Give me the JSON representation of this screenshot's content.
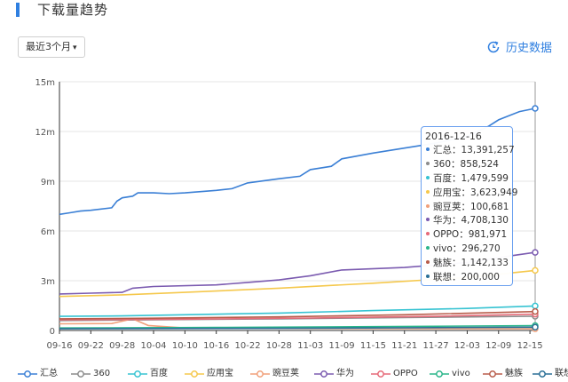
{
  "header": {
    "title": "下载量趋势"
  },
  "controls": {
    "range_label": "最近3个月",
    "history_label": "历史数据"
  },
  "icons": {
    "range_caret": "caret-down-icon",
    "history": "refresh-clock-icon"
  },
  "tooltip": {
    "date": "2016-12-16",
    "rows": [
      {
        "name": "汇总",
        "value": "13,391,257"
      },
      {
        "name": "360",
        "value": "858,524"
      },
      {
        "name": "百度",
        "value": "1,479,599"
      },
      {
        "name": "应用宝",
        "value": "3,623,949"
      },
      {
        "name": "豌豆荚",
        "value": "100,681"
      },
      {
        "name": "华为",
        "value": "4,708,130"
      },
      {
        "name": "OPPO",
        "value": "981,971"
      },
      {
        "name": "vivo",
        "value": "296,270"
      },
      {
        "name": "魅族",
        "value": "1,142,133"
      },
      {
        "name": "联想",
        "value": "200,000"
      }
    ]
  },
  "chart_data": {
    "type": "line",
    "ylim": [
      0,
      15000000
    ],
    "yticks": [
      0,
      3000000,
      6000000,
      9000000,
      12000000,
      15000000
    ],
    "ytick_labels": [
      "0",
      "3m",
      "6m",
      "9m",
      "12m",
      "15m"
    ],
    "xticks": [
      "09-16",
      "09-22",
      "09-28",
      "10-04",
      "10-10",
      "10-16",
      "10-22",
      "10-28",
      "11-03",
      "11-09",
      "11-15",
      "11-21",
      "11-27",
      "12-03",
      "12-09",
      "12-15"
    ],
    "x_start": "2016-09-16",
    "x_end": "2016-12-16",
    "series": [
      {
        "name": "汇总",
        "color": "#3a7fd5",
        "points": [
          [
            "2016-09-16",
            7000000
          ],
          [
            "2016-09-18",
            7100000
          ],
          [
            "2016-09-20",
            7200000
          ],
          [
            "2016-09-22",
            7250000
          ],
          [
            "2016-09-26",
            7400000
          ],
          [
            "2016-09-27",
            7800000
          ],
          [
            "2016-09-28",
            8000000
          ],
          [
            "2016-09-30",
            8100000
          ],
          [
            "2016-10-01",
            8300000
          ],
          [
            "2016-10-04",
            8300000
          ],
          [
            "2016-10-07",
            8250000
          ],
          [
            "2016-10-10",
            8300000
          ],
          [
            "2016-10-16",
            8450000
          ],
          [
            "2016-10-19",
            8550000
          ],
          [
            "2016-10-22",
            8900000
          ],
          [
            "2016-10-28",
            9150000
          ],
          [
            "2016-11-01",
            9300000
          ],
          [
            "2016-11-03",
            9700000
          ],
          [
            "2016-11-07",
            9900000
          ],
          [
            "2016-11-09",
            10350000
          ],
          [
            "2016-11-15",
            10700000
          ],
          [
            "2016-11-21",
            11000000
          ],
          [
            "2016-11-27",
            11300000
          ],
          [
            "2016-12-03",
            11700000
          ],
          [
            "2016-12-07",
            12300000
          ],
          [
            "2016-12-09",
            12700000
          ],
          [
            "2016-12-13",
            13200000
          ],
          [
            "2016-12-16",
            13391257
          ]
        ]
      },
      {
        "name": "360",
        "color": "#8c8c8c",
        "points": [
          [
            "2016-09-16",
            600000
          ],
          [
            "2016-10-04",
            650000
          ],
          [
            "2016-10-28",
            700000
          ],
          [
            "2016-11-21",
            780000
          ],
          [
            "2016-12-16",
            858524
          ]
        ]
      },
      {
        "name": "百度",
        "color": "#36c3d2",
        "points": [
          [
            "2016-09-16",
            850000
          ],
          [
            "2016-09-28",
            880000
          ],
          [
            "2016-10-10",
            950000
          ],
          [
            "2016-10-28",
            1050000
          ],
          [
            "2016-11-15",
            1200000
          ],
          [
            "2016-12-03",
            1330000
          ],
          [
            "2016-12-16",
            1479599
          ]
        ]
      },
      {
        "name": "应用宝",
        "color": "#f5c84c",
        "points": [
          [
            "2016-09-16",
            2050000
          ],
          [
            "2016-09-28",
            2150000
          ],
          [
            "2016-10-10",
            2300000
          ],
          [
            "2016-10-28",
            2550000
          ],
          [
            "2016-11-15",
            2850000
          ],
          [
            "2016-12-03",
            3200000
          ],
          [
            "2016-12-16",
            3623949
          ]
        ]
      },
      {
        "name": "豌豆荚",
        "color": "#f0a07a",
        "points": [
          [
            "2016-09-16",
            400000
          ],
          [
            "2016-09-26",
            420000
          ],
          [
            "2016-09-30",
            700000
          ],
          [
            "2016-10-03",
            300000
          ],
          [
            "2016-10-10",
            150000
          ],
          [
            "2016-11-03",
            120000
          ],
          [
            "2016-12-16",
            100681
          ]
        ]
      },
      {
        "name": "华为",
        "color": "#7b5bb0",
        "points": [
          [
            "2016-09-16",
            2200000
          ],
          [
            "2016-09-22",
            2250000
          ],
          [
            "2016-09-28",
            2300000
          ],
          [
            "2016-09-30",
            2550000
          ],
          [
            "2016-10-04",
            2650000
          ],
          [
            "2016-10-16",
            2750000
          ],
          [
            "2016-10-22",
            2900000
          ],
          [
            "2016-10-28",
            3050000
          ],
          [
            "2016-11-03",
            3300000
          ],
          [
            "2016-11-09",
            3650000
          ],
          [
            "2016-11-21",
            3800000
          ],
          [
            "2016-12-03",
            4100000
          ],
          [
            "2016-12-09",
            4400000
          ],
          [
            "2016-12-16",
            4708130
          ]
        ]
      },
      {
        "name": "OPPO",
        "color": "#e66a78",
        "points": [
          [
            "2016-09-16",
            650000
          ],
          [
            "2016-10-10",
            680000
          ],
          [
            "2016-11-03",
            750000
          ],
          [
            "2016-11-27",
            850000
          ],
          [
            "2016-12-16",
            981971
          ]
        ]
      },
      {
        "name": "vivo",
        "color": "#2bb58a",
        "points": [
          [
            "2016-09-16",
            150000
          ],
          [
            "2016-10-16",
            180000
          ],
          [
            "2016-11-15",
            230000
          ],
          [
            "2016-12-16",
            296270
          ]
        ]
      },
      {
        "name": "魅族",
        "color": "#b85c4a",
        "points": [
          [
            "2016-09-16",
            700000
          ],
          [
            "2016-10-04",
            740000
          ],
          [
            "2016-10-28",
            820000
          ],
          [
            "2016-11-21",
            950000
          ],
          [
            "2016-12-16",
            1142133
          ]
        ]
      },
      {
        "name": "联想",
        "color": "#2a6f96",
        "points": [
          [
            "2016-09-16",
            100000
          ],
          [
            "2016-10-28",
            130000
          ],
          [
            "2016-11-27",
            170000
          ],
          [
            "2016-12-16",
            200000
          ]
        ]
      }
    ]
  }
}
